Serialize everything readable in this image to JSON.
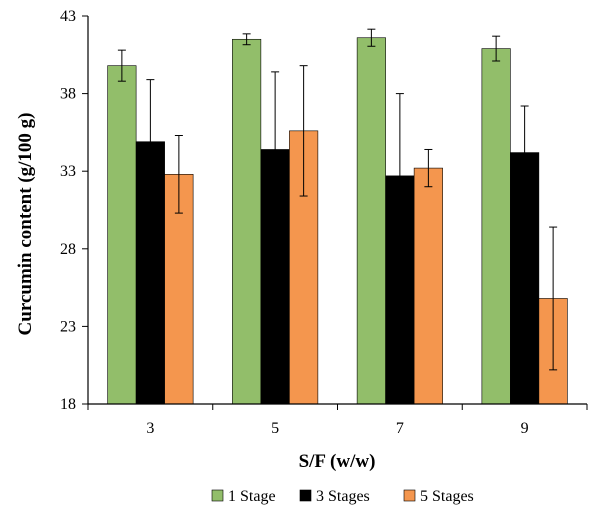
{
  "chart_data": {
    "type": "bar",
    "title": "",
    "xlabel": "S/F (w/w)",
    "ylabel": "Curcumin content (g/100 g)",
    "categories": [
      "3",
      "5",
      "7",
      "9"
    ],
    "ylim": [
      18,
      43
    ],
    "yticks": [
      "18",
      "23",
      "28",
      "33",
      "38",
      "43"
    ],
    "grid": false,
    "legend_position": "bottom",
    "series": [
      {
        "name": "1 Stage",
        "color": "#92BE6A",
        "values": [
          39.8,
          41.5,
          41.6,
          40.9
        ],
        "errors": [
          1.0,
          0.35,
          0.55,
          0.8
        ]
      },
      {
        "name": "3 Stages",
        "color": "#000000",
        "values": [
          34.9,
          34.4,
          32.7,
          34.2
        ],
        "errors": [
          4.0,
          5.0,
          5.3,
          3.0
        ]
      },
      {
        "name": "5 Stages",
        "color": "#F4964E",
        "values": [
          32.8,
          35.6,
          33.2,
          24.8
        ],
        "errors": [
          2.5,
          4.2,
          1.2,
          4.6
        ]
      }
    ]
  }
}
